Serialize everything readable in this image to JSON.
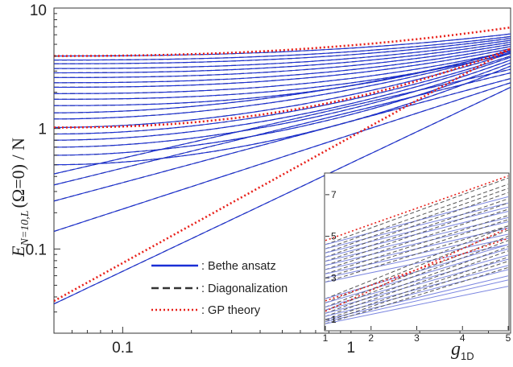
{
  "chart_data": [
    {
      "type": "line",
      "xscale": "log",
      "yscale": "log",
      "xlim": [
        0.05,
        5
      ],
      "ylim": [
        0.02,
        10
      ],
      "ylabel_main": "E",
      "ylabel_sub": "N=10,L",
      "ylabel_rest": "(Ω=0) / N",
      "xlabel_main": "g",
      "xlabel_sub": "1D",
      "x_ticks": [
        "0.1",
        "1"
      ],
      "y_ticks": [
        "0.1",
        "1",
        "10"
      ],
      "legend": [
        {
          "label": ": Bethe ansatz",
          "style": "solid",
          "color": "#1a2fd6"
        },
        {
          "label": ": Diagonalization",
          "style": "dashed",
          "color": "#333333"
        },
        {
          "label": ": GP theory",
          "style": "dotted",
          "color": "#e8201a"
        }
      ],
      "series_note": "families of curves; y values at g1D = 0.05 and 5",
      "gp_curves": [
        {
          "y_at_005": 4.0,
          "y_at_5": 6.9
        },
        {
          "y_at_005": 1.02,
          "y_at_5": 4.6
        },
        {
          "y_at_005": 0.037,
          "y_at_5": 4.6
        }
      ],
      "ba_start_values": [
        4.0,
        3.7,
        3.45,
        3.15,
        2.9,
        2.65,
        2.4,
        2.2,
        1.95,
        1.75,
        1.55,
        1.35,
        1.2,
        1.02,
        0.9,
        0.8,
        0.7,
        0.6,
        0.5,
        0.42,
        0.34,
        0.25,
        0.14,
        0.035
      ],
      "ba_end_values": [
        6.1,
        5.8,
        5.6,
        5.4,
        5.2,
        5.0,
        4.8,
        4.6,
        4.4,
        4.2,
        4.5,
        4.4,
        4.3,
        4.2,
        4.0,
        3.9,
        3.7,
        3.5,
        3.3,
        3.1,
        2.9,
        2.6,
        2.4,
        2.2
      ],
      "colors": {
        "bethe": "#1a2fd6",
        "diag": "#333333",
        "gp": "#e8201a"
      }
    },
    {
      "type": "line",
      "role": "inset",
      "xlim": [
        1,
        5
      ],
      "ylim": [
        0.5,
        8
      ],
      "x_ticks": [
        "1",
        "2",
        "3",
        "4",
        "5"
      ],
      "y_ticks": [
        "1",
        "3",
        "5",
        "7"
      ],
      "series_note": "linear-scale view of same curves"
    }
  ]
}
